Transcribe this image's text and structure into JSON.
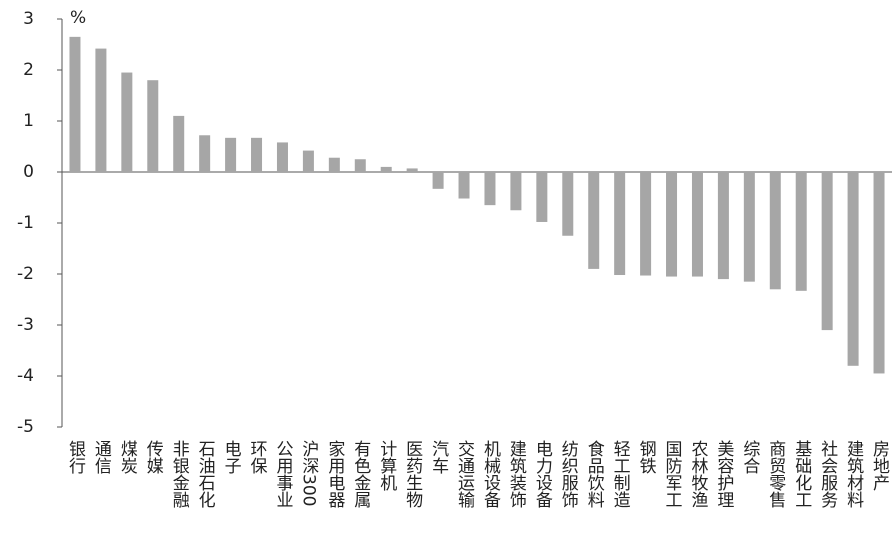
{
  "chart_data": {
    "type": "bar",
    "unit": "%",
    "categories": [
      "银行",
      "通信",
      "煤炭",
      "传媒",
      "非银金融",
      "石油石化",
      "电子",
      "环保",
      "公用事业",
      "沪深300",
      "家用电器",
      "有色金属",
      "计算机",
      "医药生物",
      "汽车",
      "交通运输",
      "机械设备",
      "建筑装饰",
      "电力设备",
      "纺织服饰",
      "食品饮料",
      "轻工制造",
      "钢铁",
      "国防军工",
      "农林牧渔",
      "美容护理",
      "综合",
      "商贸零售",
      "基础化工",
      "社会服务",
      "建筑材料",
      "房地产"
    ],
    "values": [
      2.65,
      2.42,
      1.95,
      1.8,
      1.1,
      0.72,
      0.67,
      0.67,
      0.58,
      0.42,
      0.28,
      0.25,
      0.1,
      0.07,
      -0.33,
      -0.52,
      -0.65,
      -0.75,
      -0.98,
      -1.25,
      -1.9,
      -2.02,
      -2.03,
      -2.05,
      -2.05,
      -2.1,
      -2.15,
      -2.3,
      -2.33,
      -3.1,
      -3.8,
      -3.95
    ],
    "color": "#a6a6a6",
    "ylim": [
      -5,
      3
    ],
    "yticks": [
      -5,
      -4,
      -3,
      -2,
      -1,
      0,
      1,
      2,
      3
    ]
  }
}
